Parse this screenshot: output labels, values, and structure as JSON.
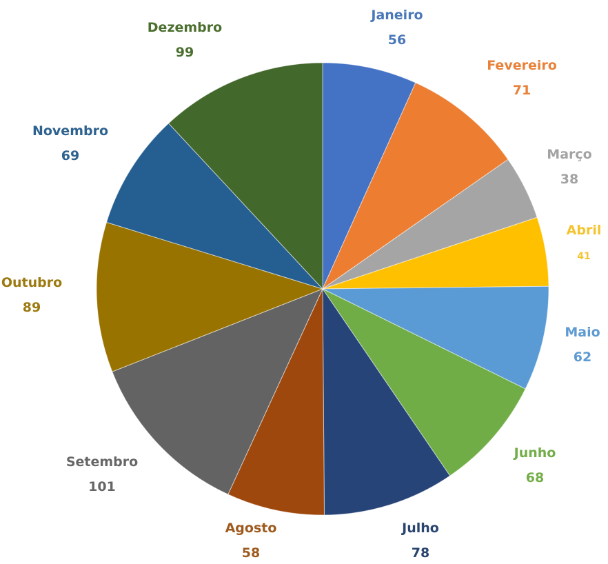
{
  "chart_data": {
    "type": "pie",
    "categories": [
      "Janeiro",
      "Fevereiro",
      "Março",
      "Abril",
      "Maio",
      "Junho",
      "Julho",
      "Agosto",
      "Setembro",
      "Outubro",
      "Novembro",
      "Dezembro"
    ],
    "values": [
      56,
      71,
      38,
      41,
      62,
      68,
      78,
      58,
      101,
      89,
      69,
      99
    ],
    "value_labels": [
      "56",
      "71",
      "38",
      "41",
      "62",
      "68",
      "78",
      "58",
      "101",
      "89",
      "69",
      "99"
    ],
    "colors": [
      "#4472C4",
      "#ED7D31",
      "#A5A5A5",
      "#FFC000",
      "#5B9BD5",
      "#70AD47",
      "#264478",
      "#9E480E",
      "#636363",
      "#997300",
      "#255E91",
      "#43682B"
    ],
    "label_colors": [
      "#4a78b8",
      "#e8823a",
      "#a3a3a3",
      "#f4c430",
      "#5e9bd2",
      "#73ad48",
      "#2a4470",
      "#9e5a1e",
      "#666666",
      "#9c7a10",
      "#2e628f",
      "#4b6f2e"
    ],
    "start_angle_deg": 0,
    "direction": "clockwise",
    "legend": "none"
  }
}
